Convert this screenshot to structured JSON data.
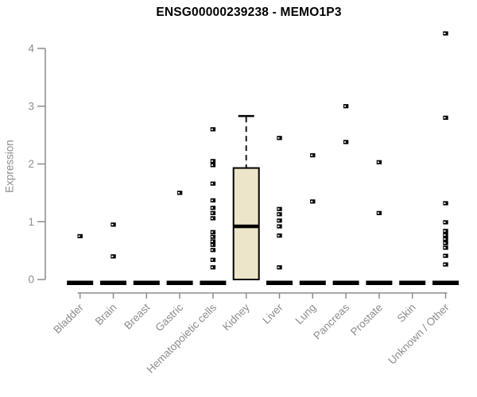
{
  "chart_data": {
    "type": "boxplot",
    "title": "ENSG00000239238 - MEMO1P3",
    "ylabel": "Expression",
    "xlabel": "",
    "ylim": [
      0,
      4.4
    ],
    "yticks": [
      0,
      1,
      2,
      3,
      4
    ],
    "grid": false,
    "legend": null,
    "axis_color": "#8c8c8c",
    "box_fill_color": "#ece5c9",
    "data_color": "#000000",
    "categories": [
      "Bladder",
      "Brain",
      "Breast",
      "Gastric",
      "Hematopoietic cells",
      "Kidney",
      "Liver",
      "Lung",
      "Pancreas",
      "Prostate",
      "Skin",
      "Unknown / Other"
    ],
    "boxes": [
      {
        "category": "Bladder",
        "q1": 0,
        "median": 0,
        "q3": 0,
        "whisker_low": 0,
        "whisker_high": 0,
        "outliers": [
          0.75
        ]
      },
      {
        "category": "Brain",
        "q1": 0,
        "median": 0,
        "q3": 0,
        "whisker_low": 0,
        "whisker_high": 0,
        "outliers": [
          0.95,
          0.4
        ]
      },
      {
        "category": "Breast",
        "q1": 0,
        "median": 0,
        "q3": 0,
        "whisker_low": 0,
        "whisker_high": 0,
        "outliers": []
      },
      {
        "category": "Gastric",
        "q1": 0,
        "median": 0,
        "q3": 0,
        "whisker_low": 0,
        "whisker_high": 0,
        "outliers": [
          1.5
        ]
      },
      {
        "category": "Hematopoietic cells",
        "q1": 0,
        "median": 0,
        "q3": 0,
        "whisker_low": 0,
        "whisker_high": 0,
        "outliers": [
          2.6,
          2.05,
          1.98,
          1.66,
          1.37,
          1.24,
          1.15,
          1.06,
          0.82,
          0.74,
          0.66,
          0.6,
          0.51,
          0.34,
          0.21
        ]
      },
      {
        "category": "Kidney",
        "q1": 0,
        "median": 0.92,
        "q3": 1.93,
        "whisker_low": 0,
        "whisker_high": 2.83,
        "outliers": []
      },
      {
        "category": "Liver",
        "q1": 0,
        "median": 0,
        "q3": 0,
        "whisker_low": 0,
        "whisker_high": 0,
        "outliers": [
          2.45,
          1.22,
          1.13,
          1.02,
          0.92,
          0.76,
          0.21
        ]
      },
      {
        "category": "Lung",
        "q1": 0,
        "median": 0,
        "q3": 0,
        "whisker_low": 0,
        "whisker_high": 0,
        "outliers": [
          2.15,
          1.35
        ]
      },
      {
        "category": "Pancreas",
        "q1": 0,
        "median": 0,
        "q3": 0,
        "whisker_low": 0,
        "whisker_high": 0,
        "outliers": [
          3.0,
          2.38
        ]
      },
      {
        "category": "Prostate",
        "q1": 0,
        "median": 0,
        "q3": 0,
        "whisker_low": 0,
        "whisker_high": 0,
        "outliers": [
          2.03,
          1.15
        ]
      },
      {
        "category": "Skin",
        "q1": 0,
        "median": 0,
        "q3": 0,
        "whisker_low": 0,
        "whisker_high": 0,
        "outliers": []
      },
      {
        "category": "Unknown / Other",
        "q1": 0,
        "median": 0,
        "q3": 0,
        "whisker_low": 0,
        "whisker_high": 0,
        "outliers": [
          4.26,
          2.8,
          1.32,
          0.99,
          0.84,
          0.77,
          0.7,
          0.63,
          0.55,
          0.41,
          0.26
        ]
      }
    ]
  }
}
